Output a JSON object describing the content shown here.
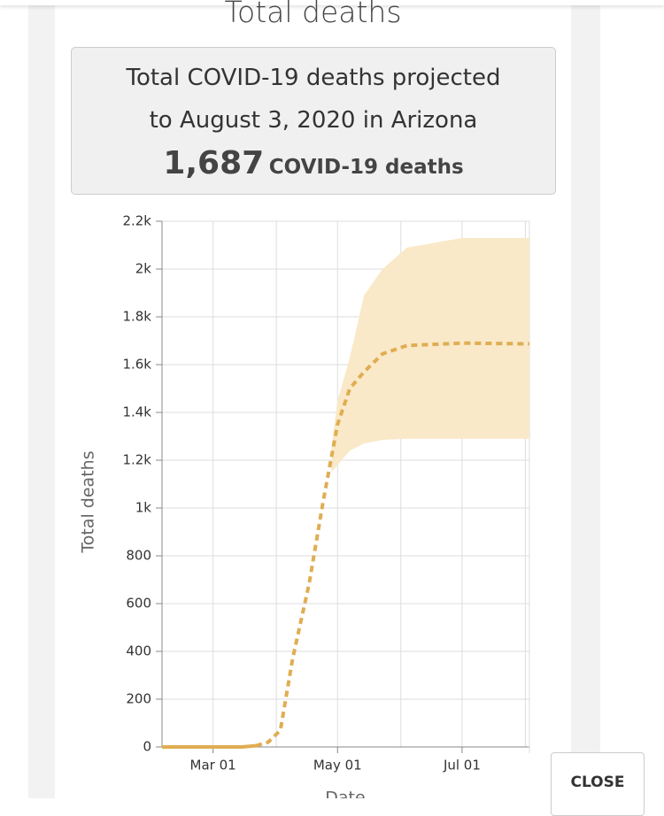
{
  "header": {
    "title": "Total deaths"
  },
  "summary": {
    "text": "Total COVID-19 deaths projected to August 3, 2020 in Arizona",
    "number": "1,687",
    "unit": "COVID-19 deaths"
  },
  "close_button": "CLOSE",
  "chart_data": {
    "type": "line",
    "xlabel": "Date",
    "ylabel": "Total deaths",
    "xlim": [
      "Feb 05",
      "Aug 03"
    ],
    "xticks": [
      "Mar 01",
      "May 01",
      "Jul 01"
    ],
    "ylim": [
      0,
      2200
    ],
    "yticks": [
      0,
      200,
      400,
      600,
      800,
      {
        "value": 1000,
        "label": "1k"
      },
      {
        "value": 1200,
        "label": "1.2k"
      },
      {
        "value": 1400,
        "label": "1.4k"
      },
      {
        "value": 1600,
        "label": "1.6k"
      },
      {
        "value": 1800,
        "label": "1.8k"
      },
      {
        "value": 2000,
        "label": "2k"
      },
      {
        "value": 2200,
        "label": "2.2k"
      }
    ],
    "grid": true,
    "series": [
      {
        "color": "#e0ad52",
        "style": "solid",
        "x": [
          "Feb 05",
          "Mar 01",
          "Mar 15",
          "Mar 22"
        ],
        "values": [
          0,
          0,
          0,
          5
        ]
      },
      {
        "color": "#e0ad52",
        "style": "dashed",
        "x": [
          "Mar 22",
          "Mar 28",
          "Apr 03",
          "Apr 09",
          "Apr 17",
          "Apr 24",
          "May 01",
          "May 07",
          "May 14",
          "May 23",
          "Jun 04",
          "Jul 01",
          "Aug 03"
        ],
        "values": [
          5,
          20,
          70,
          370,
          680,
          1030,
          1350,
          1500,
          1570,
          1645,
          1680,
          1690,
          1687
        ]
      }
    ],
    "band": {
      "color": "#f9e9c8",
      "x": [
        "Apr 28",
        "May 01",
        "May 07",
        "May 14",
        "May 23",
        "Jun 04",
        "Jul 01",
        "Aug 03"
      ],
      "lower": [
        1150,
        1180,
        1240,
        1270,
        1285,
        1290,
        1290,
        1290
      ],
      "upper": [
        1250,
        1450,
        1630,
        1890,
        2000,
        2090,
        2130,
        2130
      ]
    }
  }
}
